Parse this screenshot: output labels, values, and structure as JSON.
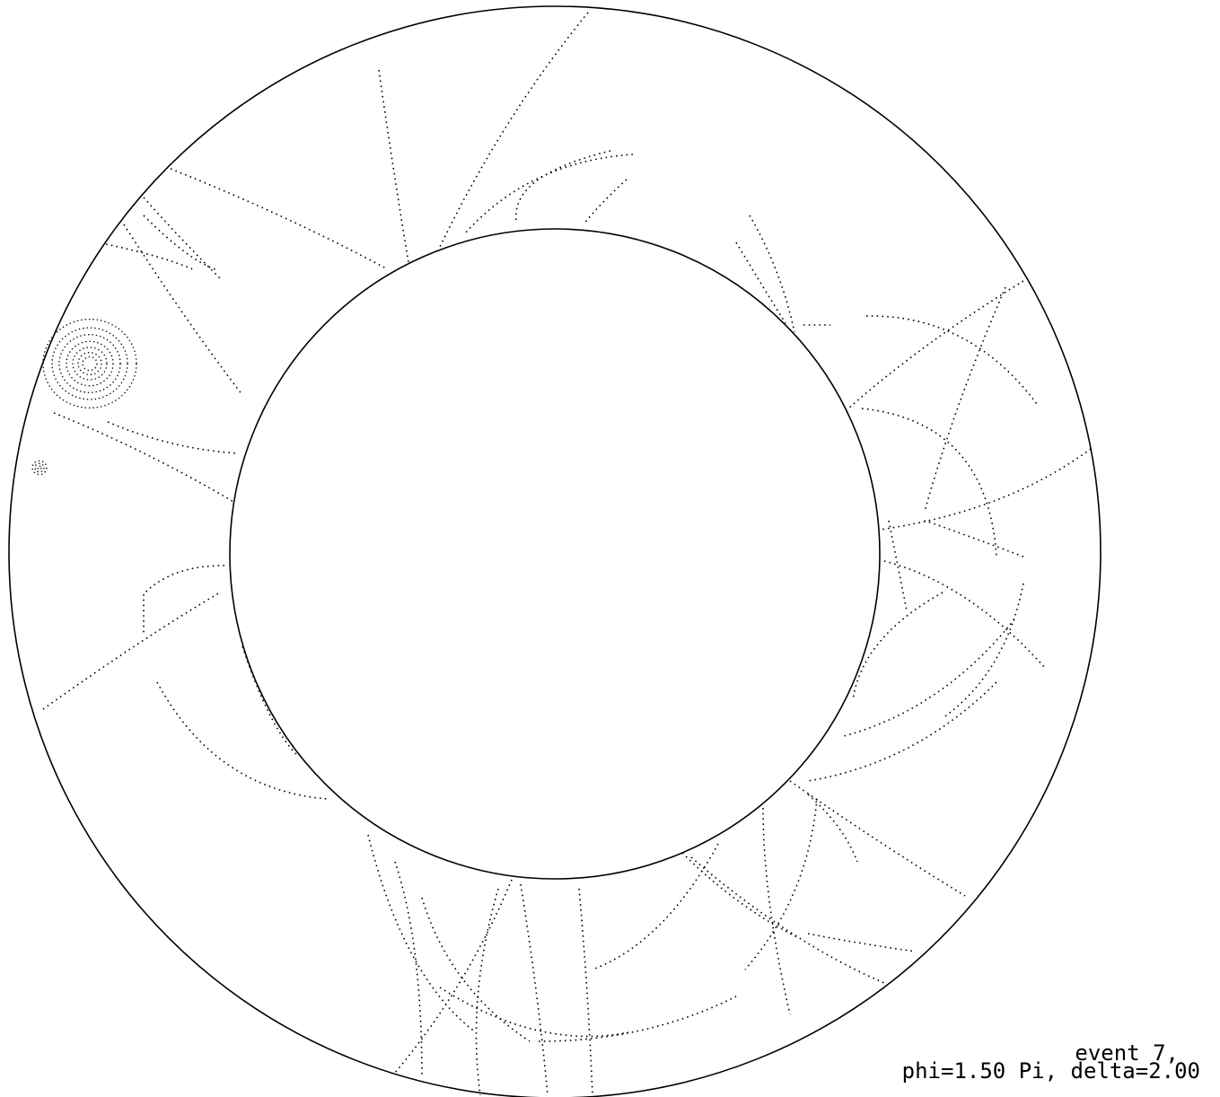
{
  "display": {
    "event_label": "event 7,",
    "view_label": "phi=1.50 Pi, delta=2.00",
    "colors": {
      "background": "#ffffff",
      "ink": "#000000"
    }
  }
}
